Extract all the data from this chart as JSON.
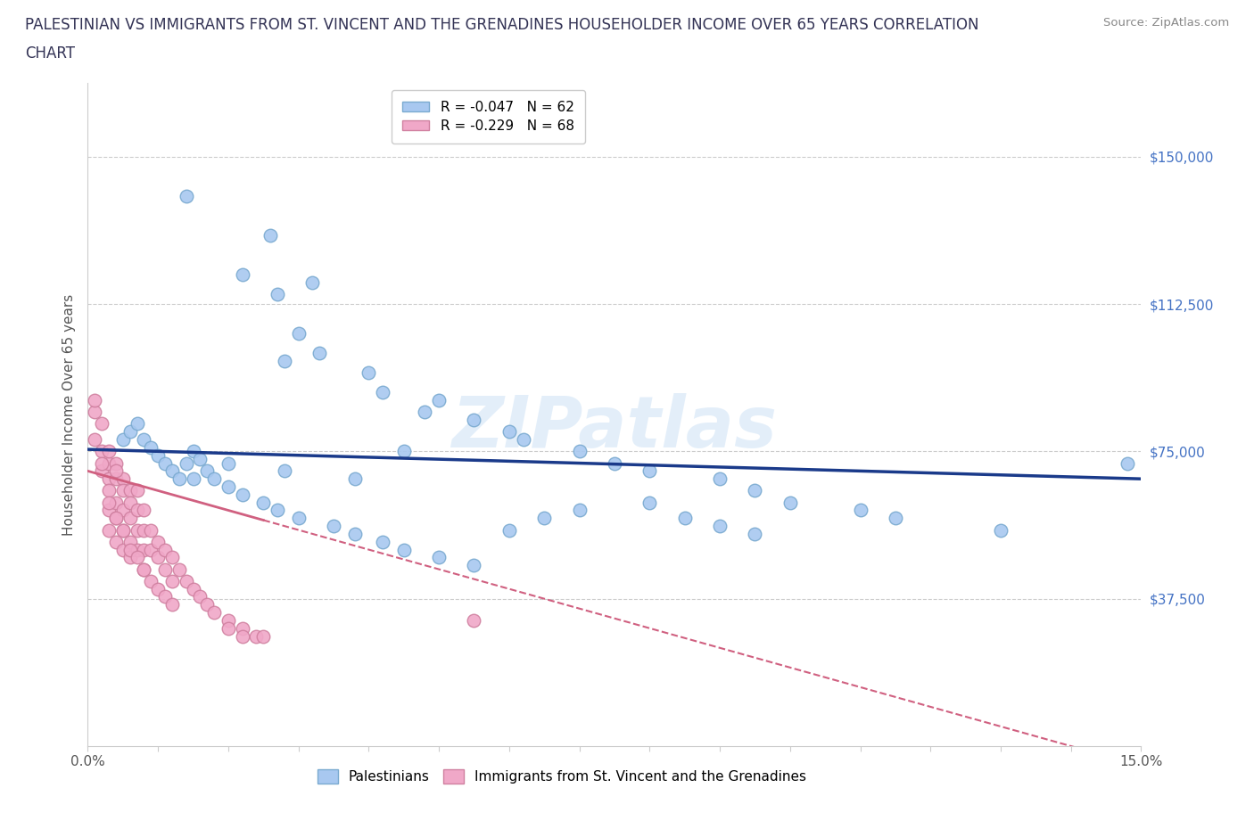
{
  "title": "PALESTINIAN VS IMMIGRANTS FROM ST. VINCENT AND THE GRENADINES HOUSEHOLDER INCOME OVER 65 YEARS CORRELATION\nCHART",
  "source": "Source: ZipAtlas.com",
  "ylabel": "Householder Income Over 65 years",
  "xmin": 0.0,
  "xmax": 0.15,
  "ymin": 0,
  "ymax": 168750,
  "yticks": [
    0,
    37500,
    75000,
    112500,
    150000
  ],
  "watermark": "ZIPatlas",
  "legend1_label": "R = -0.047   N = 62",
  "legend2_label": "R = -0.229   N = 68",
  "legend1_color": "#a8c8f0",
  "legend2_color": "#f0a8c8",
  "legend1_edge": "#7aaad0",
  "legend2_edge": "#d080a0",
  "line1_color": "#1a3a8a",
  "line2_color": "#d06080",
  "palestinians_x": [
    0.014,
    0.026,
    0.022,
    0.032,
    0.027,
    0.03,
    0.033,
    0.028,
    0.04,
    0.042,
    0.05,
    0.048,
    0.055,
    0.06,
    0.062,
    0.07,
    0.075,
    0.08,
    0.09,
    0.095,
    0.1,
    0.11,
    0.115,
    0.13,
    0.148,
    0.005,
    0.006,
    0.007,
    0.008,
    0.009,
    0.01,
    0.011,
    0.012,
    0.013,
    0.014,
    0.015,
    0.016,
    0.017,
    0.018,
    0.02,
    0.022,
    0.025,
    0.027,
    0.03,
    0.035,
    0.038,
    0.042,
    0.045,
    0.05,
    0.055,
    0.06,
    0.065,
    0.07,
    0.08,
    0.085,
    0.09,
    0.095,
    0.045,
    0.038,
    0.028,
    0.02,
    0.015
  ],
  "palestinians_y": [
    140000,
    130000,
    120000,
    118000,
    115000,
    105000,
    100000,
    98000,
    95000,
    90000,
    88000,
    85000,
    83000,
    80000,
    78000,
    75000,
    72000,
    70000,
    68000,
    65000,
    62000,
    60000,
    58000,
    55000,
    72000,
    78000,
    80000,
    82000,
    78000,
    76000,
    74000,
    72000,
    70000,
    68000,
    72000,
    75000,
    73000,
    70000,
    68000,
    66000,
    64000,
    62000,
    60000,
    58000,
    56000,
    54000,
    52000,
    50000,
    48000,
    46000,
    55000,
    58000,
    60000,
    62000,
    58000,
    56000,
    54000,
    75000,
    68000,
    70000,
    72000,
    68000
  ],
  "svg_x": [
    0.001,
    0.001,
    0.002,
    0.002,
    0.002,
    0.003,
    0.003,
    0.003,
    0.003,
    0.003,
    0.004,
    0.004,
    0.004,
    0.004,
    0.004,
    0.005,
    0.005,
    0.005,
    0.005,
    0.005,
    0.006,
    0.006,
    0.006,
    0.006,
    0.006,
    0.007,
    0.007,
    0.007,
    0.007,
    0.008,
    0.008,
    0.008,
    0.008,
    0.009,
    0.009,
    0.01,
    0.01,
    0.011,
    0.011,
    0.012,
    0.012,
    0.013,
    0.014,
    0.015,
    0.016,
    0.017,
    0.018,
    0.02,
    0.022,
    0.024,
    0.025,
    0.003,
    0.004,
    0.002,
    0.001,
    0.003,
    0.004,
    0.005,
    0.006,
    0.007,
    0.008,
    0.009,
    0.01,
    0.011,
    0.012,
    0.02,
    0.022,
    0.055
  ],
  "svg_y": [
    85000,
    78000,
    82000,
    75000,
    70000,
    72000,
    68000,
    65000,
    60000,
    55000,
    72000,
    68000,
    62000,
    58000,
    52000,
    68000,
    65000,
    60000,
    55000,
    50000,
    65000,
    62000,
    58000,
    52000,
    48000,
    65000,
    60000,
    55000,
    50000,
    60000,
    55000,
    50000,
    45000,
    55000,
    50000,
    52000,
    48000,
    50000,
    45000,
    48000,
    42000,
    45000,
    42000,
    40000,
    38000,
    36000,
    34000,
    32000,
    30000,
    28000,
    28000,
    75000,
    70000,
    72000,
    88000,
    62000,
    58000,
    55000,
    50000,
    48000,
    45000,
    42000,
    40000,
    38000,
    36000,
    30000,
    28000,
    32000
  ]
}
